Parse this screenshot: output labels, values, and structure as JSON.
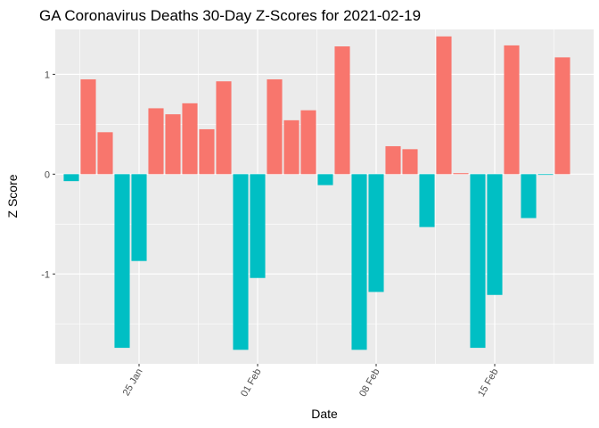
{
  "chart_data": {
    "type": "bar",
    "title": "GA Coronavirus Deaths 30-Day Z-Scores for 2021-02-19",
    "xlabel": "Date",
    "ylabel": "Z Score",
    "x": [
      "2021-01-21",
      "2021-01-22",
      "2021-01-23",
      "2021-01-24",
      "2021-01-25",
      "2021-01-26",
      "2021-01-27",
      "2021-01-28",
      "2021-01-29",
      "2021-01-30",
      "2021-01-31",
      "2021-02-01",
      "2021-02-02",
      "2021-02-03",
      "2021-02-04",
      "2021-02-05",
      "2021-02-06",
      "2021-02-07",
      "2021-02-08",
      "2021-02-09",
      "2021-02-10",
      "2021-02-11",
      "2021-02-12",
      "2021-02-13",
      "2021-02-14",
      "2021-02-15",
      "2021-02-16",
      "2021-02-17",
      "2021-02-18",
      "2021-02-19"
    ],
    "values": [
      -0.07,
      0.95,
      0.42,
      -1.74,
      -0.87,
      0.66,
      0.6,
      0.71,
      0.45,
      0.93,
      -1.76,
      -1.04,
      0.95,
      0.54,
      0.64,
      -0.11,
      1.28,
      -1.76,
      -1.18,
      0.28,
      0.25,
      -0.53,
      1.38,
      0.01,
      -1.74,
      -1.21,
      1.29,
      -0.44,
      0,
      1.17
    ],
    "positive_color": "#F8766D",
    "negative_color": "#00BFC4",
    "ylim": [
      -1.9,
      1.45
    ],
    "yticks": [
      -1,
      0,
      1
    ],
    "xticks": [
      {
        "date": "2021-01-25",
        "label": "25 Jan"
      },
      {
        "date": "2021-02-01",
        "label": "01 Feb"
      },
      {
        "date": "2021-02-08",
        "label": "08 Feb"
      },
      {
        "date": "2021-02-15",
        "label": "15 Feb"
      }
    ],
    "panel_background": "#EBEBEB",
    "grid": true,
    "legend": "none"
  }
}
